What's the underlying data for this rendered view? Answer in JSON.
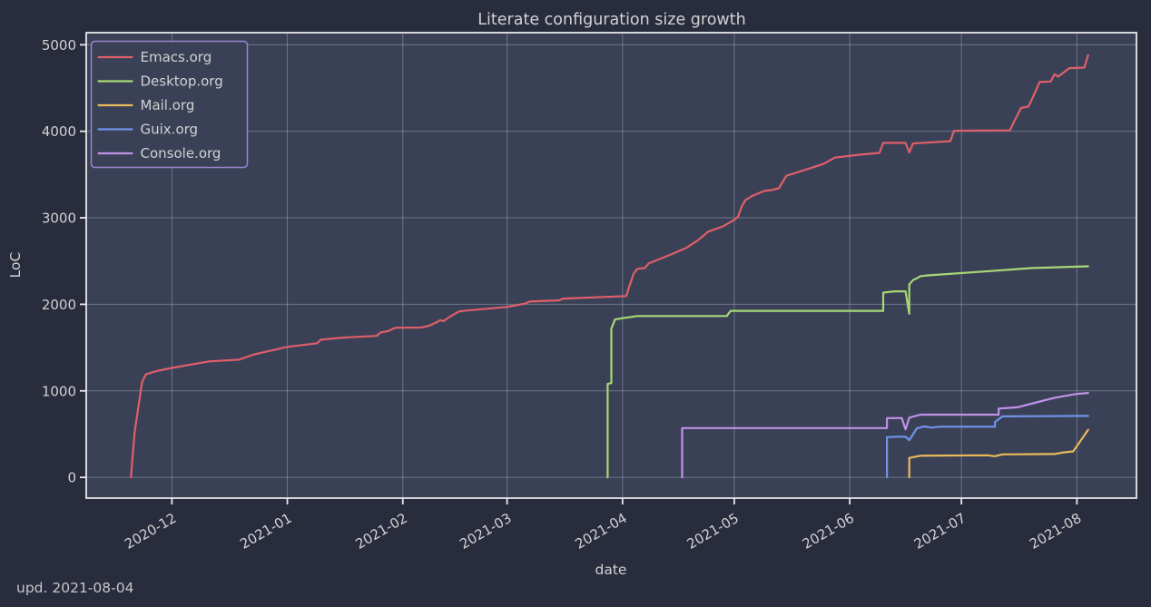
{
  "footer": {
    "update_note": "upd. 2021-08-04"
  },
  "colors": {
    "background_outer": "#282c3d",
    "background_plot": "#3a4156",
    "gridline": "#b6bccd",
    "spine": "#e8e8e8",
    "text": "#d2d2d2",
    "legend_border": "#9c84d0"
  },
  "chart_data": {
    "type": "line",
    "title": "Literate configuration size growth",
    "xlabel": "date",
    "ylabel": "LoC",
    "grid": true,
    "legend_position": "upper-left",
    "x_domain": [
      "2020-11-08",
      "2021-08-17"
    ],
    "y_domain": [
      -240,
      5140
    ],
    "y_ticks": [
      0,
      1000,
      2000,
      3000,
      4000,
      5000
    ],
    "x_ticks": [
      {
        "date": "2020-12-01",
        "label": "2020-12"
      },
      {
        "date": "2021-01-01",
        "label": "2021-01"
      },
      {
        "date": "2021-02-01",
        "label": "2021-02"
      },
      {
        "date": "2021-03-01",
        "label": "2021-03"
      },
      {
        "date": "2021-04-01",
        "label": "2021-04"
      },
      {
        "date": "2021-05-01",
        "label": "2021-05"
      },
      {
        "date": "2021-06-01",
        "label": "2021-06"
      },
      {
        "date": "2021-07-01",
        "label": "2021-07"
      },
      {
        "date": "2021-08-01",
        "label": "2021-08"
      }
    ],
    "series": [
      {
        "name": "Emacs.org",
        "color": "#df5f6a",
        "points": [
          [
            "2020-11-20",
            0
          ],
          [
            "2020-11-21",
            520
          ],
          [
            "2020-11-23",
            1100
          ],
          [
            "2020-11-24",
            1190
          ],
          [
            "2020-11-27",
            1230
          ],
          [
            "2020-12-01",
            1265
          ],
          [
            "2020-12-11",
            1340
          ],
          [
            "2020-12-19",
            1360
          ],
          [
            "2020-12-23",
            1420
          ],
          [
            "2020-12-27",
            1460
          ],
          [
            "2021-01-01",
            1508
          ],
          [
            "2021-01-09",
            1550
          ],
          [
            "2021-01-10",
            1592
          ],
          [
            "2021-01-16",
            1615
          ],
          [
            "2021-01-25",
            1635
          ],
          [
            "2021-01-26",
            1675
          ],
          [
            "2021-01-28",
            1690
          ],
          [
            "2021-01-30",
            1730
          ],
          [
            "2021-02-06",
            1732
          ],
          [
            "2021-02-08",
            1752
          ],
          [
            "2021-02-10",
            1790
          ],
          [
            "2021-02-11",
            1818
          ],
          [
            "2021-02-12",
            1806
          ],
          [
            "2021-02-13",
            1840
          ],
          [
            "2021-02-16",
            1916
          ],
          [
            "2021-02-18",
            1928
          ],
          [
            "2021-03-01",
            1970
          ],
          [
            "2021-03-06",
            2010
          ],
          [
            "2021-03-07",
            2032
          ],
          [
            "2021-03-15",
            2046
          ],
          [
            "2021-03-16",
            2066
          ],
          [
            "2021-03-28",
            2086
          ],
          [
            "2021-04-02",
            2096
          ],
          [
            "2021-04-03",
            2230
          ],
          [
            "2021-04-04",
            2356
          ],
          [
            "2021-04-05",
            2410
          ],
          [
            "2021-04-07",
            2420
          ],
          [
            "2021-04-08",
            2472
          ],
          [
            "2021-04-14",
            2576
          ],
          [
            "2021-04-18",
            2650
          ],
          [
            "2021-04-21",
            2732
          ],
          [
            "2021-04-24",
            2840
          ],
          [
            "2021-04-28",
            2902
          ],
          [
            "2021-05-01",
            2976
          ],
          [
            "2021-05-02",
            3012
          ],
          [
            "2021-05-03",
            3130
          ],
          [
            "2021-05-04",
            3206
          ],
          [
            "2021-05-06",
            3256
          ],
          [
            "2021-05-09",
            3310
          ],
          [
            "2021-05-11",
            3320
          ],
          [
            "2021-05-13",
            3342
          ],
          [
            "2021-05-15",
            3486
          ],
          [
            "2021-05-19",
            3540
          ],
          [
            "2021-05-25",
            3624
          ],
          [
            "2021-05-28",
            3696
          ],
          [
            "2021-06-04",
            3730
          ],
          [
            "2021-06-09",
            3750
          ],
          [
            "2021-06-10",
            3866
          ],
          [
            "2021-06-16",
            3866
          ],
          [
            "2021-06-17",
            3756
          ],
          [
            "2021-06-18",
            3860
          ],
          [
            "2021-06-28",
            3886
          ],
          [
            "2021-06-29",
            4006
          ],
          [
            "2021-07-14",
            4010
          ],
          [
            "2021-07-15",
            4100
          ],
          [
            "2021-07-17",
            4270
          ],
          [
            "2021-07-19",
            4286
          ],
          [
            "2021-07-20",
            4376
          ],
          [
            "2021-07-22",
            4570
          ],
          [
            "2021-07-25",
            4576
          ],
          [
            "2021-07-26",
            4660
          ],
          [
            "2021-07-27",
            4632
          ],
          [
            "2021-07-28",
            4666
          ],
          [
            "2021-07-30",
            4730
          ],
          [
            "2021-08-03",
            4736
          ],
          [
            "2021-08-04",
            4880
          ]
        ]
      },
      {
        "name": "Desktop.org",
        "color": "#a8d876",
        "points": [
          [
            "2021-03-28",
            0
          ],
          [
            "2021-03-28",
            1080
          ],
          [
            "2021-03-29",
            1090
          ],
          [
            "2021-03-29",
            1720
          ],
          [
            "2021-03-30",
            1825
          ],
          [
            "2021-04-01",
            1840
          ],
          [
            "2021-04-05",
            1865
          ],
          [
            "2021-04-29",
            1865
          ],
          [
            "2021-04-30",
            1925
          ],
          [
            "2021-06-10",
            1925
          ],
          [
            "2021-06-10",
            2135
          ],
          [
            "2021-06-13",
            2150
          ],
          [
            "2021-06-16",
            2150
          ],
          [
            "2021-06-17",
            1890
          ],
          [
            "2021-06-17",
            2230
          ],
          [
            "2021-06-18",
            2280
          ],
          [
            "2021-06-19",
            2300
          ],
          [
            "2021-06-20",
            2325
          ],
          [
            "2021-06-22",
            2335
          ],
          [
            "2021-07-09",
            2385
          ],
          [
            "2021-07-20",
            2420
          ],
          [
            "2021-08-04",
            2440
          ]
        ]
      },
      {
        "name": "Mail.org",
        "color": "#e9ba5c",
        "points": [
          [
            "2021-06-17",
            0
          ],
          [
            "2021-06-17",
            225
          ],
          [
            "2021-06-20",
            250
          ],
          [
            "2021-07-08",
            255
          ],
          [
            "2021-07-10",
            245
          ],
          [
            "2021-07-12",
            265
          ],
          [
            "2021-07-26",
            270
          ],
          [
            "2021-07-28",
            285
          ],
          [
            "2021-07-31",
            300
          ],
          [
            "2021-08-04",
            550
          ]
        ]
      },
      {
        "name": "Guix.org",
        "color": "#7094ea",
        "points": [
          [
            "2021-06-11",
            0
          ],
          [
            "2021-06-11",
            465
          ],
          [
            "2021-06-14",
            470
          ],
          [
            "2021-06-16",
            470
          ],
          [
            "2021-06-17",
            430
          ],
          [
            "2021-06-19",
            565
          ],
          [
            "2021-06-21",
            590
          ],
          [
            "2021-06-23",
            575
          ],
          [
            "2021-06-25",
            585
          ],
          [
            "2021-07-10",
            585
          ],
          [
            "2021-07-10",
            640
          ],
          [
            "2021-07-12",
            705
          ],
          [
            "2021-08-04",
            710
          ]
        ]
      },
      {
        "name": "Console.org",
        "color": "#c191e8",
        "points": [
          [
            "2021-04-17",
            0
          ],
          [
            "2021-04-17",
            570
          ],
          [
            "2021-06-11",
            570
          ],
          [
            "2021-06-11",
            685
          ],
          [
            "2021-06-15",
            685
          ],
          [
            "2021-06-16",
            555
          ],
          [
            "2021-06-17",
            690
          ],
          [
            "2021-06-20",
            725
          ],
          [
            "2021-07-11",
            725
          ],
          [
            "2021-07-11",
            795
          ],
          [
            "2021-07-16",
            810
          ],
          [
            "2021-07-26",
            920
          ],
          [
            "2021-08-01",
            965
          ],
          [
            "2021-08-04",
            975
          ]
        ]
      }
    ]
  }
}
